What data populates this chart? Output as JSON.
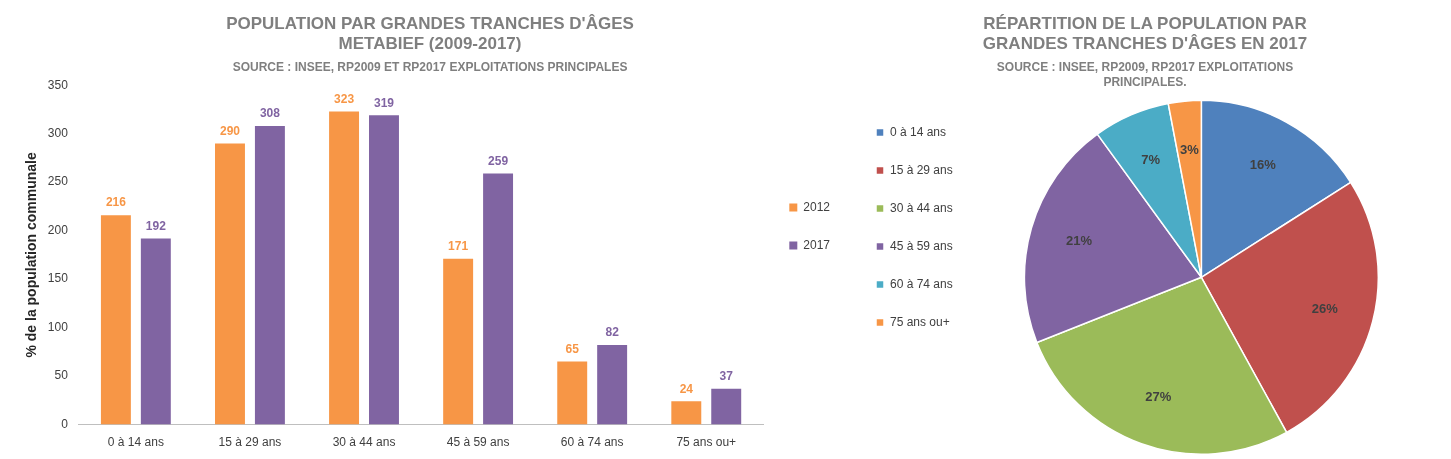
{
  "chart_data": [
    {
      "type": "bar",
      "title": "POPULATION PAR GRANDES TRANCHES D'ÂGES\nMETABIEF (2009-2017)",
      "subtitle": "SOURCE : INSEE, RP2009 ET RP2017 EXPLOITATIONS PRINCIPALES",
      "ylabel": "% de la population communale",
      "categories": [
        "0 à 14 ans",
        "15 à 29 ans",
        "30 à 44 ans",
        "45 à 59 ans",
        "60 à 74 ans",
        "75 ans ou+"
      ],
      "series": [
        {
          "name": "2012",
          "color": "#f79646",
          "values": [
            216,
            290,
            323,
            171,
            65,
            24
          ]
        },
        {
          "name": "2017",
          "color": "#8064a2",
          "values": [
            192,
            308,
            319,
            259,
            82,
            37
          ]
        }
      ],
      "ylim": [
        0,
        350
      ],
      "yticks": [
        0,
        50,
        100,
        150,
        200,
        250,
        300,
        350
      ],
      "grid": false,
      "legend": "right",
      "data_labels": true
    },
    {
      "type": "pie",
      "title": "RÉPARTITION DE LA POPULATION PAR\nGRANDES TRANCHES D'ÂGES EN 2017",
      "subtitle": "SOURCE : INSEE, RP2009, RP2017 EXPLOITATIONS\nPRINCIPALES.",
      "categories": [
        "0 à 14 ans",
        "15 à 29 ans",
        "30 à 44 ans",
        "45 à 59 ans",
        "60 à 74 ans",
        "75 ans ou+"
      ],
      "values": [
        16,
        26,
        27,
        21,
        7,
        3
      ],
      "colors": [
        "#4f81bd",
        "#c0504d",
        "#9bbb59",
        "#8064a2",
        "#4bacc6",
        "#f79646"
      ],
      "legend": "left",
      "value_labels": [
        "16%",
        "26%",
        "27%",
        "21%",
        "7%",
        "3%"
      ]
    }
  ]
}
